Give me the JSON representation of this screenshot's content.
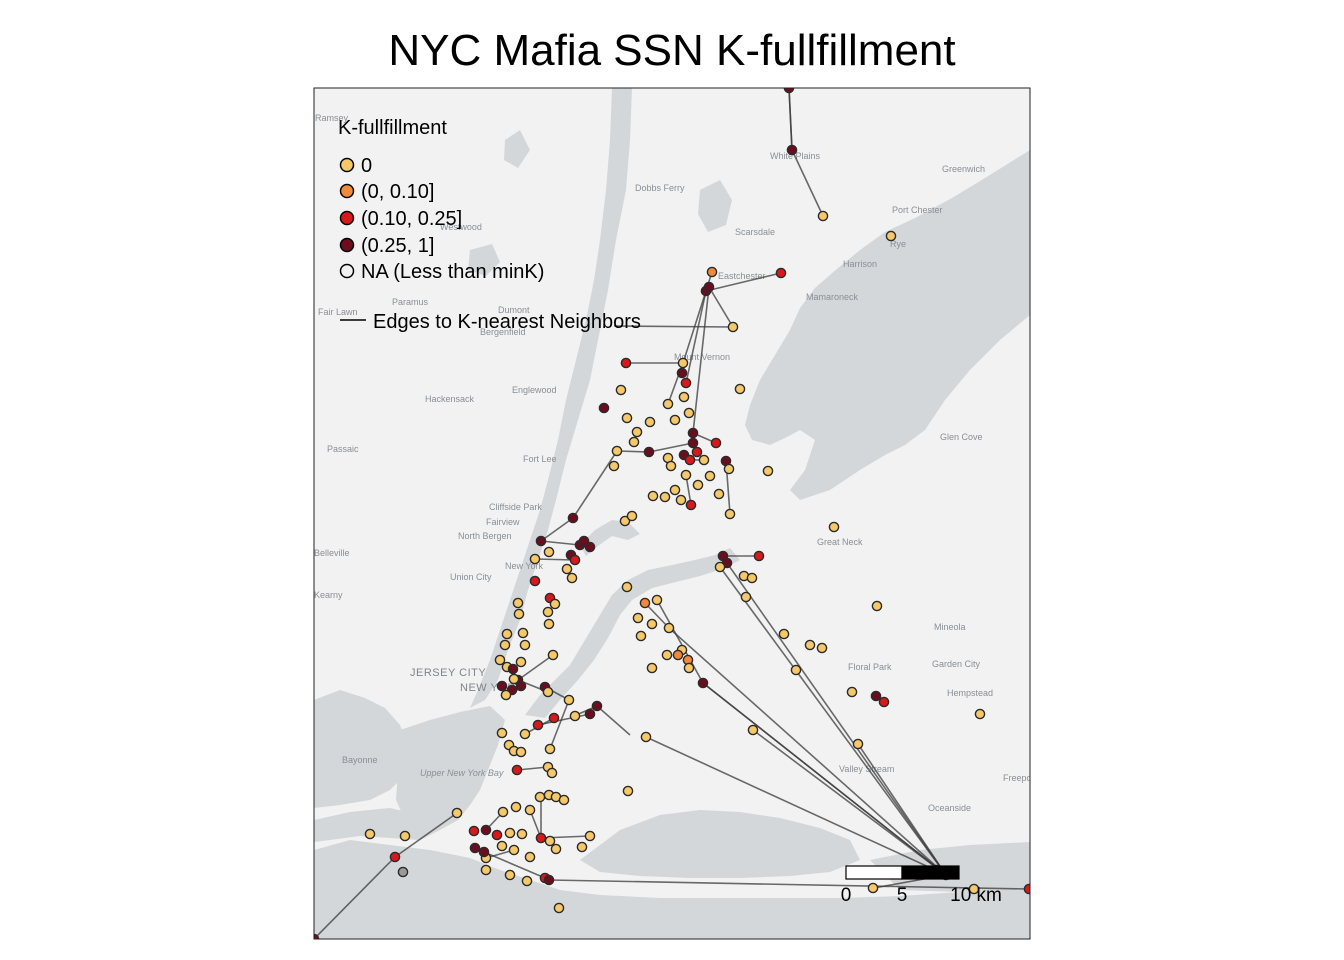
{
  "title": "NYC Mafia SSN K-fullfillment",
  "colors": {
    "land": "#f1f2f1",
    "water": "#d4d7da",
    "edge": "#3a3a3a",
    "cat_0": "#f5c96a",
    "cat_1": "#ef8a3a",
    "cat_2": "#d7191c",
    "cat_3": "#6b0d1e",
    "na": "#9a9a9a"
  },
  "legend": {
    "title": "K-fullfillment",
    "items": [
      {
        "label": "0",
        "color": "#f5c96a"
      },
      {
        "label": "(0, 0.10]",
        "color": "#ef8a3a"
      },
      {
        "label": "(0.10, 0.25]",
        "color": "#d7191c"
      },
      {
        "label": "(0.25, 1]",
        "color": "#6b0d1e"
      },
      {
        "label": "NA (Less than minK)",
        "color": "none"
      }
    ],
    "edge_label": "Edges to K-nearest Neighbors"
  },
  "scale_bar": {
    "labels": [
      "0",
      "5",
      "10 km"
    ]
  },
  "places": [
    "Ramsey",
    "White Plains",
    "Dobbs Ferry",
    "Greenwich",
    "Port Chester",
    "Scarsdale",
    "Rye",
    "Harrison",
    "Westwood",
    "Eastchester",
    "Mamaroneck",
    "Paramus",
    "Fair Lawn",
    "Dumont",
    "Bergenfield",
    "Mount Vernon",
    "Englewood",
    "Hackensack",
    "Glen Cove",
    "Passaic",
    "Fort Lee",
    "Cliffside Park",
    "Fairview",
    "North Bergen",
    "Great Neck",
    "New York",
    "Union City",
    "Kearny",
    "Mineola",
    "Floral Park",
    "Garden City",
    "JERSEY CITY",
    "NEW YORK",
    "Hempstead",
    "Bayonne",
    "Valley Stream",
    "Upper New York Bay",
    "Freeport",
    "Oceanside",
    "Belleville"
  ]
}
